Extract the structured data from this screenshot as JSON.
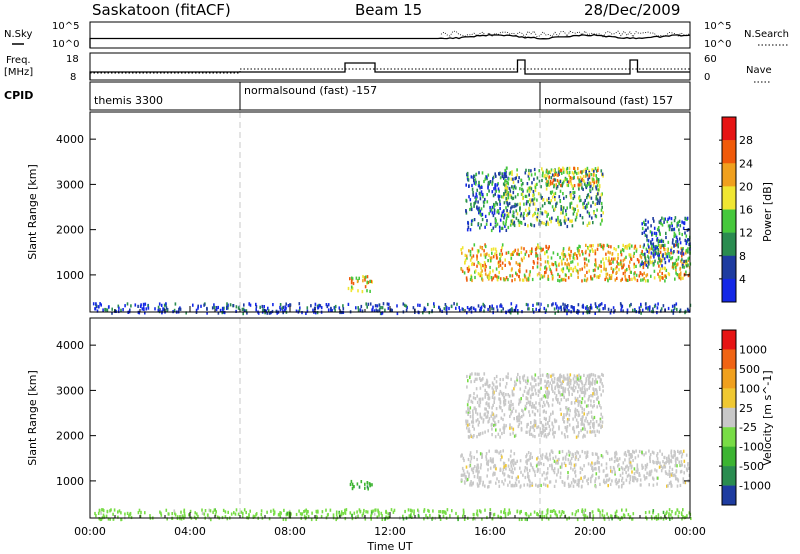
{
  "header": {
    "title": "Saskatoon (fitACF)",
    "beam": "Beam 15",
    "date": "28/Dec/2009"
  },
  "noise_panel": {
    "left_label": "N.Sky",
    "right_label": "N.Search",
    "left_ticks": [
      "10^5",
      "10^0"
    ],
    "right_ticks": [
      "10^5",
      "10^0"
    ]
  },
  "freq_panel": {
    "left_label_line1": "Freq.",
    "left_label_line2": "[MHz]",
    "left_ticks": [
      "18",
      "8"
    ],
    "right_label": "Nave",
    "right_ticks": [
      "60",
      "0"
    ]
  },
  "cpid_panel": {
    "label": "CPID",
    "segments": [
      {
        "label": "themis 3300",
        "start_hour": 0
      },
      {
        "label": "normalsound (fast) -157",
        "start_hour": 6
      },
      {
        "label": "normalsound (fast) 157",
        "start_hour": 18
      }
    ]
  },
  "x_axis": {
    "label": "Time UT",
    "ticks": [
      "00:00",
      "04:00",
      "08:00",
      "12:00",
      "16:00",
      "20:00",
      "00:00"
    ],
    "range_hours": [
      0,
      24
    ]
  },
  "chart_data": [
    {
      "type": "heatmap",
      "name": "Power",
      "ylabel": "Slant Range [km]",
      "yticks": [
        "1000",
        "2000",
        "3000",
        "4000"
      ],
      "ylim": [
        180,
        4600
      ],
      "colorbar": {
        "label": "Power [dB]",
        "ticks": [
          "4",
          "8",
          "12",
          "16",
          "20",
          "24",
          "28"
        ],
        "colors": [
          "#1428e6",
          "#1e3ca0",
          "#2a8c50",
          "#46c83c",
          "#f0e632",
          "#f0a01e",
          "#f05a0a",
          "#e61414"
        ]
      },
      "regions": [
        {
          "t0": 0.1,
          "t1": 24.0,
          "r0": 180,
          "r1": 400,
          "level": 1
        },
        {
          "t0": 10.3,
          "t1": 11.3,
          "r0": 650,
          "r1": 1000,
          "level": 5
        },
        {
          "t0": 14.8,
          "t1": 24.0,
          "r0": 900,
          "r1": 1700,
          "level": 5
        },
        {
          "t0": 15.0,
          "t1": 16.7,
          "r0": 2000,
          "r1": 3300,
          "level": 2
        },
        {
          "t0": 16.5,
          "t1": 20.5,
          "r0": 2100,
          "r1": 3400,
          "level": 3
        },
        {
          "t0": 18.2,
          "t1": 20.3,
          "r0": 3000,
          "r1": 3400,
          "level": 5
        },
        {
          "t0": 22.0,
          "t1": 24.0,
          "r0": 1200,
          "r1": 2300,
          "level": 2
        }
      ]
    },
    {
      "type": "heatmap",
      "name": "Velocity",
      "ylabel": "Slant Range [km]",
      "yticks": [
        "1000",
        "2000",
        "3000",
        "4000"
      ],
      "ylim": [
        180,
        4600
      ],
      "colorbar": {
        "label": "Velocity [m s^-1]",
        "ticks": [
          "1000",
          "500",
          "100",
          "25",
          "-25",
          "-100",
          "-500",
          "-1000"
        ],
        "colors": [
          "#1e3ca0",
          "#2a8c50",
          "#3cb432",
          "#78dc46",
          "#c8c8c8",
          "#f0c832",
          "#f0a01e",
          "#f06414",
          "#e61414"
        ]
      },
      "regions": [
        {
          "t0": 0.1,
          "t1": 24.0,
          "r0": 180,
          "r1": 400,
          "level": -1
        },
        {
          "t0": 10.3,
          "t1": 11.3,
          "r0": 850,
          "r1": 1050,
          "level": -2
        },
        {
          "t0": 14.8,
          "t1": 24.0,
          "r0": 900,
          "r1": 1700,
          "level": 0
        },
        {
          "t0": 15.0,
          "t1": 20.5,
          "r0": 2000,
          "r1": 3400,
          "level": 0
        },
        {
          "t0": 18.2,
          "t1": 20.3,
          "r0": 2900,
          "r1": 3400,
          "level": 0
        }
      ]
    }
  ]
}
